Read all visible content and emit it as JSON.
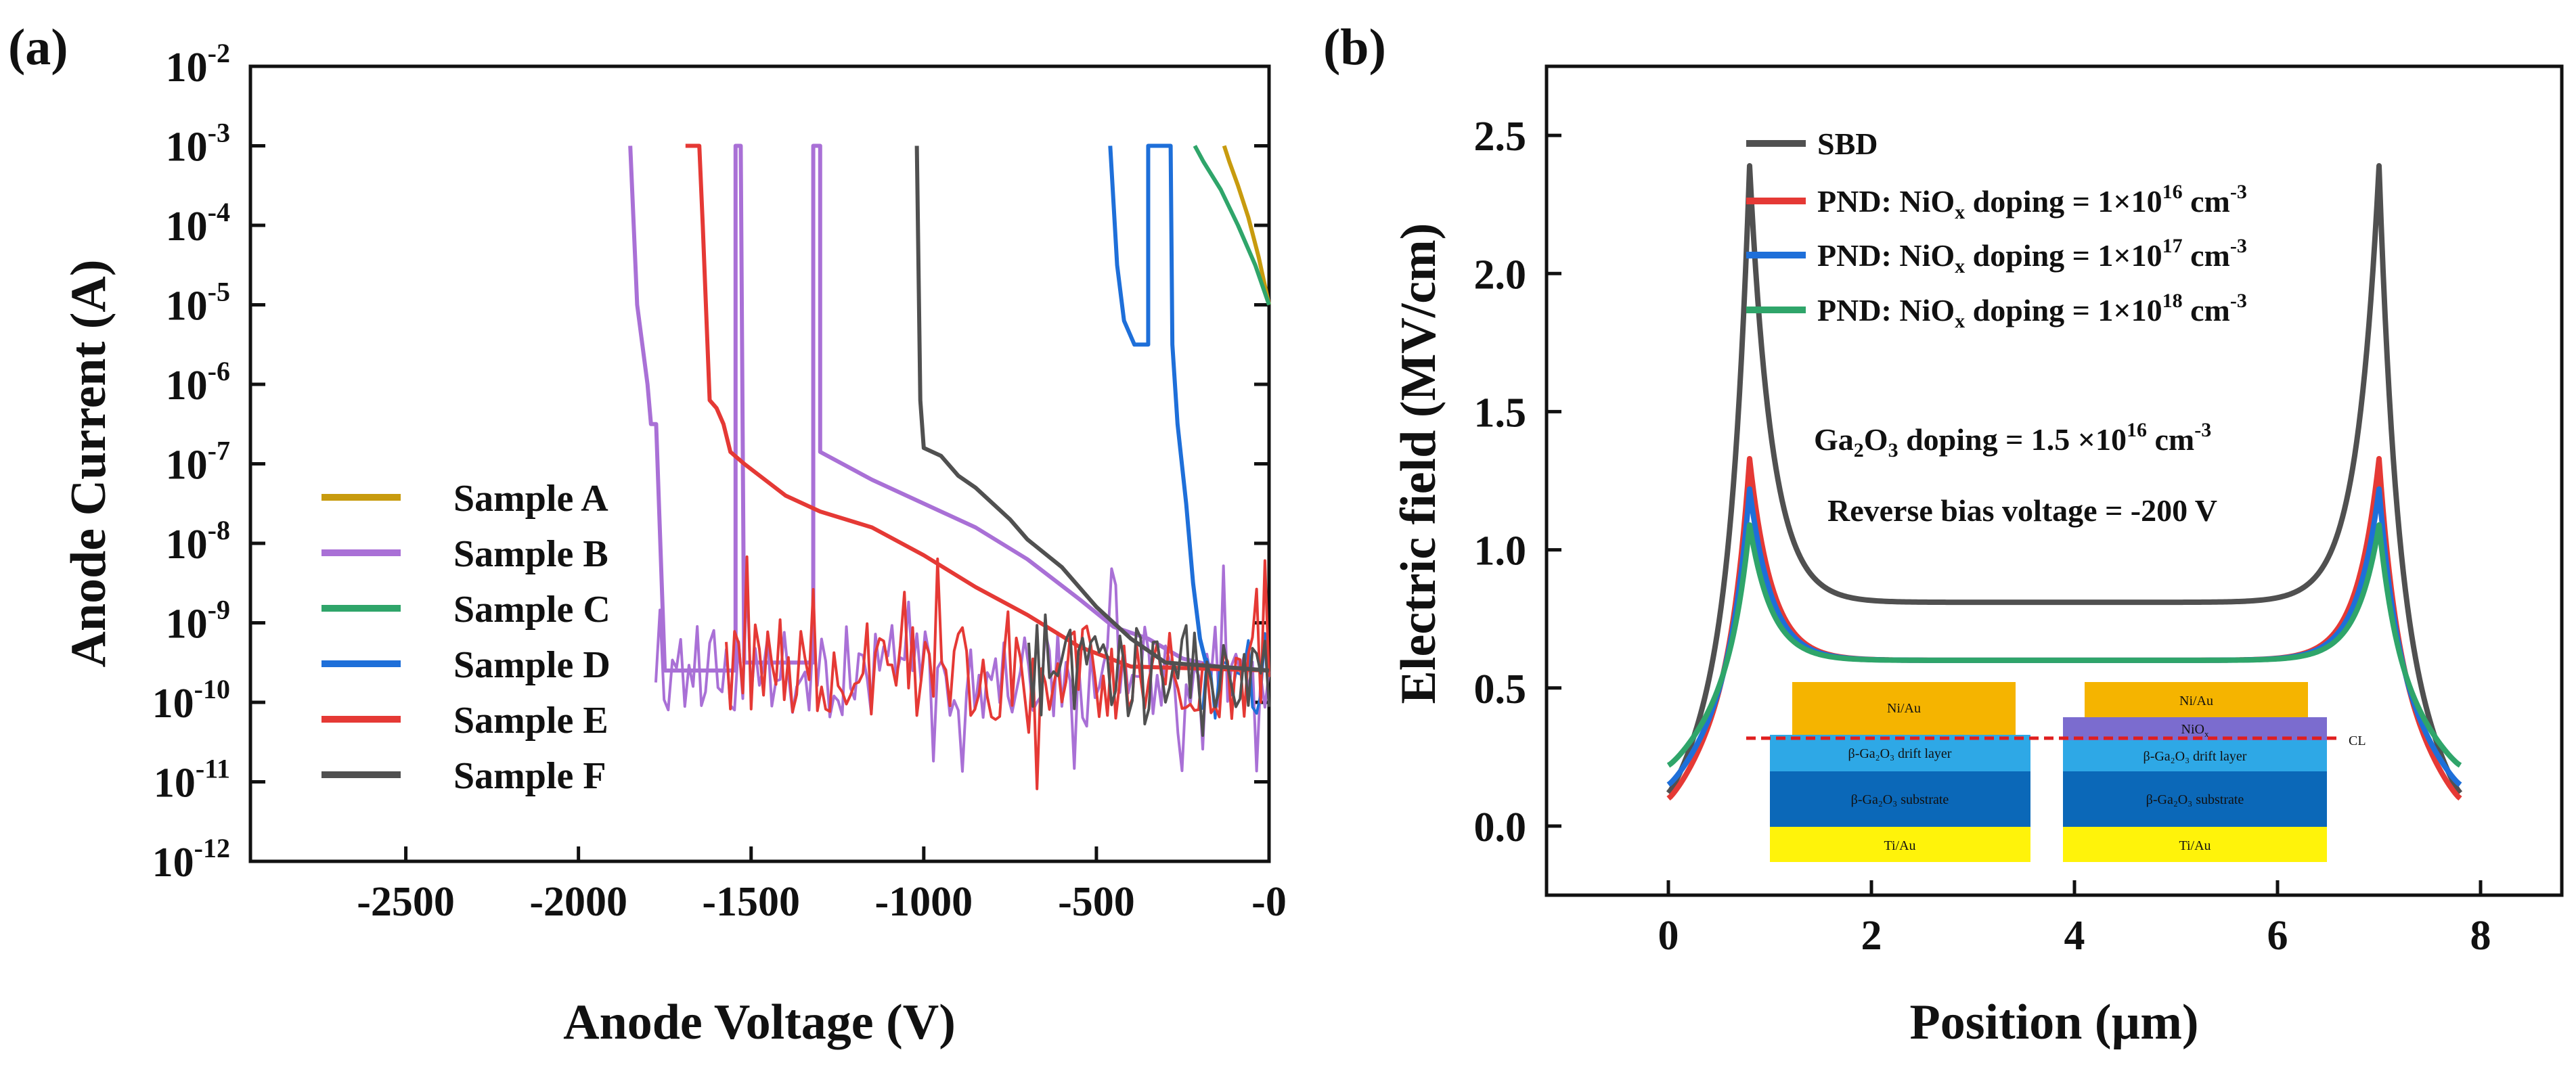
{
  "chart_data": [
    {
      "panel_label": "(a)",
      "type": "line",
      "xlabel": "Anode Voltage (V)",
      "ylabel": "Anode Current (A)",
      "yscale": "log",
      "xlim": [
        -2950,
        0
      ],
      "ylim_exponents": [
        -12,
        -2
      ],
      "x_ticks": [
        -2500,
        -2000,
        -1500,
        -1000,
        -500,
        0
      ],
      "x_tick_labels": [
        "-2500",
        "-2000",
        "-1500",
        "-1000",
        "-500",
        "-0"
      ],
      "y_tick_exponents": [
        -12,
        -11,
        -10,
        -9,
        -8,
        -7,
        -6,
        -5,
        -4,
        -3,
        -2
      ],
      "legend_position": "left-bottom",
      "series": [
        {
          "name": "Sample A",
          "color": "#C89B0E",
          "points": [
            [
              0,
              -5.0
            ],
            [
              -30,
              -4.4
            ],
            [
              -60,
              -3.9
            ],
            [
              -90,
              -3.5
            ],
            [
              -115,
              -3.2
            ],
            [
              -130,
              -3.0
            ]
          ]
        },
        {
          "name": "Sample B",
          "color": "#A970D6",
          "points": [
            [
              0,
              -9.6
            ],
            [
              -150,
              -9.55
            ],
            [
              -250,
              -9.45
            ],
            [
              -350,
              -9.2
            ],
            [
              -450,
              -9.05
            ],
            [
              -550,
              -8.7
            ],
            [
              -700,
              -8.2
            ],
            [
              -850,
              -7.8
            ],
            [
              -1000,
              -7.5
            ],
            [
              -1150,
              -7.2
            ],
            [
              -1300,
              -6.85
            ],
            [
              -1300,
              -3.0
            ],
            [
              -1320,
              -3.0
            ],
            [
              -1320,
              -9.5
            ],
            [
              -1520,
              -9.5
            ],
            [
              -1530,
              -3.0
            ],
            [
              -1545,
              -3.0
            ],
            [
              -1545,
              -9.6
            ],
            [
              -1750,
              -9.6
            ],
            [
              -1775,
              -6.5
            ],
            [
              -1790,
              -6.5
            ],
            [
              -1800,
              -6.0
            ],
            [
              -1830,
              -5.0
            ],
            [
              -1850,
              -3.0
            ]
          ]
        },
        {
          "name": "Sample C",
          "color": "#2FA56A",
          "points": [
            [
              0,
              -5.0
            ],
            [
              -40,
              -4.5
            ],
            [
              -90,
              -4.0
            ],
            [
              -140,
              -3.55
            ],
            [
              -190,
              -3.2
            ],
            [
              -215,
              -3.0
            ]
          ]
        },
        {
          "name": "Sample D",
          "color": "#1E6FD9",
          "points": [
            [
              0,
              -9.6
            ],
            [
              -180,
              -9.55
            ],
            [
              -200,
              -9.2
            ],
            [
              -220,
              -8.5
            ],
            [
              -240,
              -7.5
            ],
            [
              -265,
              -6.5
            ],
            [
              -280,
              -5.5
            ],
            [
              -285,
              -3.0
            ],
            [
              -350,
              -3.0
            ],
            [
              -350,
              -5.5
            ],
            [
              -390,
              -5.5
            ],
            [
              -420,
              -5.2
            ],
            [
              -440,
              -4.5
            ],
            [
              -460,
              -3.0
            ]
          ]
        },
        {
          "name": "Sample E",
          "color": "#E53935",
          "points": [
            [
              0,
              -9.6
            ],
            [
              -400,
              -9.55
            ],
            [
              -550,
              -9.3
            ],
            [
              -700,
              -8.9
            ],
            [
              -850,
              -8.55
            ],
            [
              -1000,
              -8.15
            ],
            [
              -1150,
              -7.8
            ],
            [
              -1300,
              -7.6
            ],
            [
              -1400,
              -7.4
            ],
            [
              -1520,
              -7.0
            ],
            [
              -1560,
              -6.85
            ],
            [
              -1580,
              -6.5
            ],
            [
              -1600,
              -6.3
            ],
            [
              -1620,
              -6.2
            ],
            [
              -1640,
              -4.0
            ],
            [
              -1650,
              -3.0
            ],
            [
              -1670,
              -3.0
            ],
            [
              -1690,
              -3.0
            ]
          ]
        },
        {
          "name": "Sample F",
          "color": "#505050",
          "points": [
            [
              0,
              -9.6
            ],
            [
              -300,
              -9.5
            ],
            [
              -400,
              -9.2
            ],
            [
              -500,
              -8.8
            ],
            [
              -600,
              -8.3
            ],
            [
              -700,
              -7.95
            ],
            [
              -750,
              -7.7
            ],
            [
              -800,
              -7.5
            ],
            [
              -850,
              -7.3
            ],
            [
              -900,
              -7.15
            ],
            [
              -950,
              -6.9
            ],
            [
              -1000,
              -6.8
            ],
            [
              -1010,
              -6.2
            ],
            [
              -1020,
              -3.0
            ]
          ]
        }
      ]
    },
    {
      "panel_label": "(b)",
      "type": "line",
      "xlabel": "Position (µm)",
      "ylabel": "Electric field (MV/cm)",
      "xlim": [
        -1.2,
        8.8
      ],
      "ylim": [
        -0.25,
        2.75
      ],
      "x_ticks": [
        0,
        2,
        4,
        6,
        8
      ],
      "y_ticks": [
        0.0,
        0.5,
        1.0,
        1.5,
        2.0,
        2.5
      ],
      "y_tick_labels": [
        "0.0",
        "0.5",
        "1.0",
        "1.5",
        "2.0",
        "2.5"
      ],
      "legend_position": "top-left",
      "annotations": [
        "Ga₂O₃ doping = 1.5 ×10¹⁶ cm⁻³",
        "Reverse bias voltage = -200 V"
      ],
      "series": [
        {
          "name": "SBD",
          "color": "#505050",
          "peak": 2.39,
          "valley": 0.81,
          "start": 0.12
        },
        {
          "name": "PND: NiOx doping = 1×10^16 cm^-3",
          "color": "#E53935",
          "peak": 1.33,
          "valley": 0.6,
          "start": 0.1
        },
        {
          "name": "PND: NiOx doping = 1×10^17 cm^-3",
          "color": "#1E6FD9",
          "peak": 1.22,
          "valley": 0.6,
          "start": 0.15
        },
        {
          "name": "PND: NiOx doping = 1×10^18 cm^-3",
          "color": "#2FA56A",
          "peak": 1.09,
          "valley": 0.6,
          "start": 0.22
        }
      ],
      "peak_positions": [
        0.8,
        7.0
      ],
      "inset": {
        "left_stack": [
          "Ni/Au",
          "β-Ga₂O₃ drift layer",
          "β-Ga₂O₃ substrate",
          "Ti/Au"
        ],
        "right_stack": [
          "Ni/Au",
          "NiOx",
          "β-Ga₂O₃ drift layer",
          "β-Ga₂O₃ substrate",
          "Ti/Au"
        ],
        "cl_label": "CL"
      }
    }
  ],
  "legend_b": {
    "sbd": "SBD",
    "prefix": "PND: NiO",
    "sub_x": "x",
    "doping_text": " doping = 1×10",
    "exp16": "16",
    "exp17": "17",
    "exp18": "18",
    "unit": " cm",
    "unit_exp": "-3"
  },
  "annotation_b": {
    "ga": "Ga",
    "sub2": "2",
    "o": "O",
    "sub3": "3",
    "doping": " doping = 1.5 ×10",
    "exp": "16",
    "unit": " cm",
    "unit_exp": "-3",
    "bias": "Reverse bias voltage = -200 V"
  },
  "inset_text": {
    "niau": "Ni/Au",
    "nio": "NiO",
    "nio_sub": "x",
    "drift": "β-Ga₂O₃ drift layer",
    "substrate": "β-Ga₂O₃ substrate",
    "tiau": "Ti/Au",
    "cl": "CL"
  },
  "y_tick_base": "10",
  "colors": {
    "inset_orange": "#F5B400",
    "inset_purple": "#7B6CCF",
    "inset_lightblue": "#2EA8E6",
    "inset_darkblue": "#0B68B8",
    "inset_yellow": "#FFF30A"
  }
}
